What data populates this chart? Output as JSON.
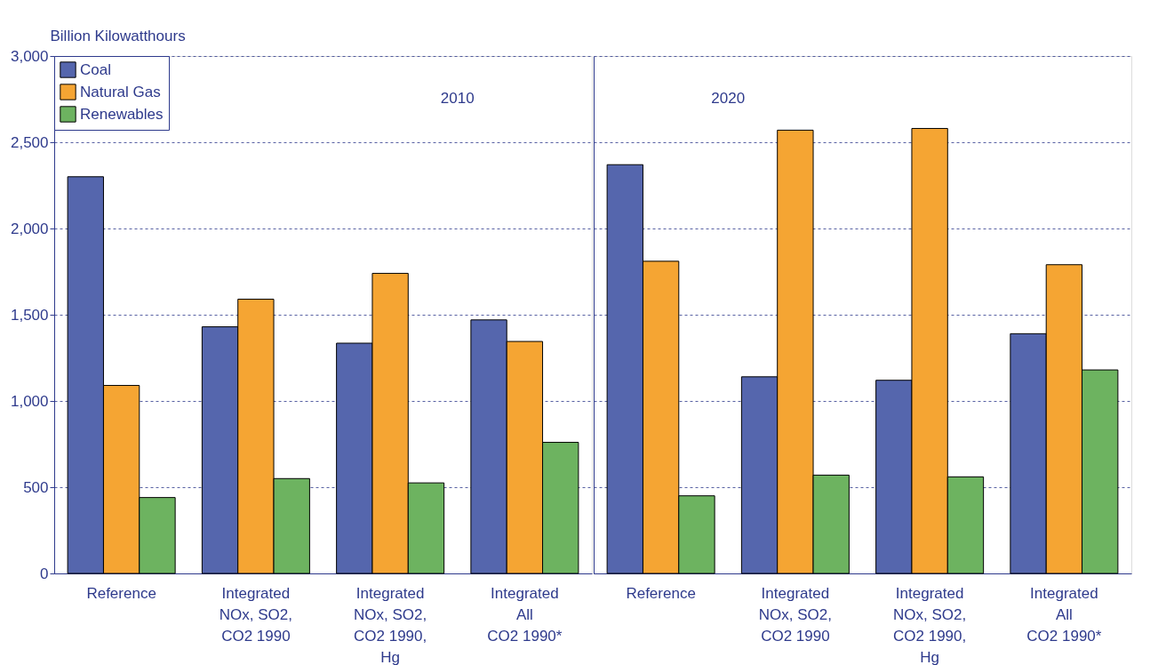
{
  "chart_data": [
    {
      "type": "bar",
      "title": "2010",
      "ylabel": "Billion Kilowatthours",
      "categories": [
        "Reference",
        "Integrated\nNOx, SO2,\nCO2 1990",
        "Integrated\nNOx, SO2,\nCO2 1990,\nHg",
        "Integrated\nAll\nCO2 1990*"
      ],
      "series": [
        {
          "name": "Coal",
          "color": "#5566ad",
          "values": [
            2300,
            1430,
            1335,
            1470
          ]
        },
        {
          "name": "Natural Gas",
          "color": "#f5a533",
          "values": [
            1090,
            1590,
            1740,
            1345
          ]
        },
        {
          "name": "Renewables",
          "color": "#6db360",
          "values": [
            440,
            550,
            525,
            760
          ]
        }
      ],
      "ylim": [
        0,
        3000
      ],
      "yticks": [
        0,
        500,
        {
          "value": 1000,
          "label": "1,000"
        },
        {
          "value": 1500,
          "label": "1,500"
        },
        {
          "value": 2000,
          "label": "2,000"
        },
        {
          "value": 2500,
          "label": "2,500"
        },
        {
          "value": 3000,
          "label": "3,000"
        }
      ],
      "grid": "y",
      "legend": "top left"
    },
    {
      "type": "bar",
      "title": "2020",
      "categories": [
        "Reference",
        "Integrated\nNOx, SO2,\nCO2 1990",
        "Integrated\nNOx, SO2,\nCO2 1990,\nHg",
        "Integrated\nAll\nCO2 1990*"
      ],
      "series": [
        {
          "name": "Coal",
          "color": "#5566ad",
          "values": [
            2370,
            1140,
            1120,
            1390
          ]
        },
        {
          "name": "Natural Gas",
          "color": "#f5a533",
          "values": [
            1810,
            2570,
            2580,
            1790
          ]
        },
        {
          "name": "Renewables",
          "color": "#6db360",
          "values": [
            450,
            570,
            560,
            1180
          ]
        }
      ],
      "ylim": [
        0,
        3000
      ],
      "yticks": [
        0,
        500,
        1000,
        1500,
        2000,
        2500,
        3000
      ],
      "grid": "y",
      "tick_labels": "x"
    }
  ]
}
